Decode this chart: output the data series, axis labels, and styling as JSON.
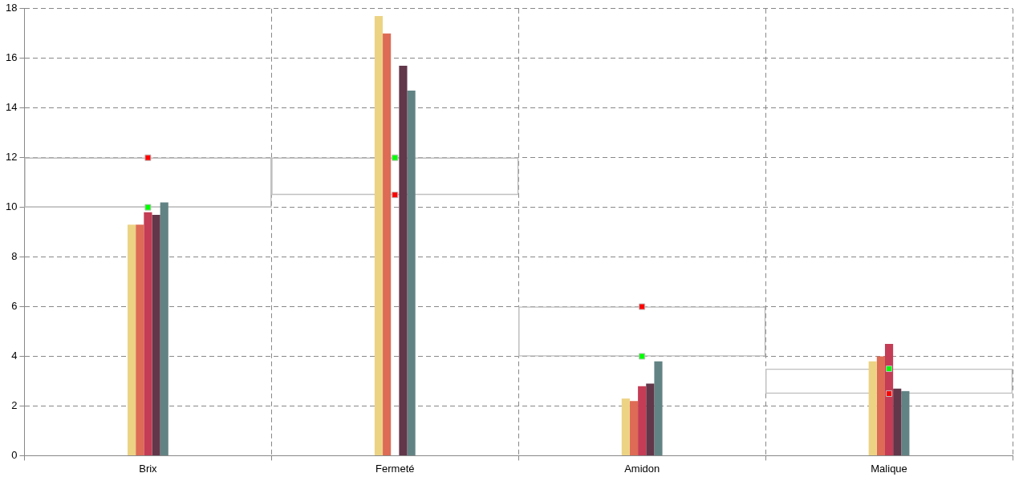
{
  "chart_data": {
    "type": "bar",
    "categories": [
      "Brix",
      "Fermeté",
      "Amidon",
      "Malique"
    ],
    "series": [
      {
        "color": "#c0c0c0",
        "type": "bar",
        "base": [
          10,
          10.5,
          4,
          2.5
        ],
        "values": [
          2,
          1.5,
          2,
          1
        ]
      },
      {
        "color": "#ecd384",
        "values": [
          9.3,
          17.7,
          2.3,
          3.8
        ]
      },
      {
        "color": "#dd6b55",
        "values": [
          9.3,
          17.0,
          2.2,
          4.0
        ]
      },
      {
        "color": "#c43c55",
        "values": [
          9.8,
          null,
          2.8,
          4.5
        ]
      },
      {
        "color": "#62374a",
        "values": [
          9.7,
          15.7,
          2.9,
          2.7
        ]
      },
      {
        "color": "#628384",
        "values": [
          10.2,
          14.7,
          3.8,
          2.6
        ]
      },
      {
        "color": "#ff0000",
        "type": "scatter",
        "values": [
          12,
          10.5,
          6,
          2.5
        ]
      },
      {
        "color": "#00ff00",
        "type": "scatter",
        "values": [
          10,
          12,
          4,
          3.5
        ]
      }
    ],
    "ylim": [
      0,
      18
    ],
    "yticks": [
      0,
      2,
      4,
      6,
      8,
      10,
      12,
      14,
      16,
      18
    ],
    "grid": true,
    "legend": false,
    "marker": "square"
  }
}
